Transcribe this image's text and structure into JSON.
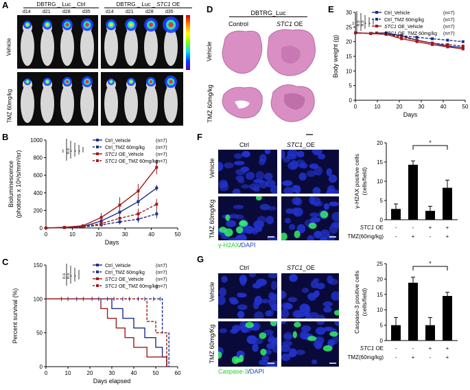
{
  "panelA": {
    "letter": "A",
    "group_ctrl": "DBTRG _ Luc _ Ctrl",
    "group_oe_prefix": "DBTRG _ Luc _ ",
    "group_oe_gene": "STC1",
    "group_oe_suffix": " OE",
    "days": [
      "d14",
      "d21",
      "d28",
      "d35",
      "d14",
      "d21",
      "d28",
      "d35"
    ],
    "row1": "Vehicle",
    "row2": "TMZ 60mg/kg",
    "colors": {
      "bg": "#111111",
      "mouse": "#d8d8d8"
    }
  },
  "panelD": {
    "letter": "D",
    "header": "DBTRG_Luc",
    "col1": "Control",
    "col2_gene": "STC1",
    "col2_suffix": " OE",
    "row1": "Vehicle",
    "row2": "TMZ 60mg/kg",
    "tissue_color": "#d98fc4"
  },
  "panelE": {
    "letter": "E",
    "legend": [
      {
        "pre": "",
        "gene": "",
        "post": "Ctrl_Vehicle",
        "n": "(n=7)"
      },
      {
        "pre": "",
        "gene": "",
        "post": "Ctrl_TMZ 60mg/kg",
        "n": "(n=7)"
      },
      {
        "pre": "",
        "gene": "STC1",
        "post": " OE_Vehicle",
        "n": "(n=7)"
      },
      {
        "pre": "",
        "gene": "STC1",
        "post": " OE_TMZ 60mg/kg",
        "n": "(n=7)"
      }
    ],
    "sig": [
      "**",
      "n.s",
      "n.s",
      "*",
      "*"
    ]
  },
  "panelB": {
    "letter": "B",
    "legend": [
      {
        "gene": "",
        "post": "Ctrl_Vehicle",
        "n": "(n=7)"
      },
      {
        "gene": "",
        "post": "Ctrl_TMZ 60mg/kg",
        "n": "(n=7)"
      },
      {
        "gene": "STC1",
        "post": " OE_Vehicle",
        "n": "(n=7)"
      },
      {
        "gene": "STC1",
        "post": " OE_TMZ 60mg/kg",
        "n": "(n=7)"
      }
    ],
    "sig": [
      "**",
      "n.s",
      "*",
      "*",
      "*"
    ]
  },
  "panelC": {
    "letter": "C",
    "legend": [
      {
        "gene": "",
        "post": "Ctrl_Vehicle",
        "n": "(n=7)"
      },
      {
        "gene": "",
        "post": "Ctrl_TMZ 60mg/kg",
        "n": "(n=7)"
      },
      {
        "gene": "STC1",
        "post": " OE_Vehicle",
        "n": "(n=7)"
      },
      {
        "gene": "STC1",
        "post": " OE_TMZ 60mg/kg",
        "n": "(n=7)"
      }
    ],
    "sig": [
      "n.s",
      "n.s",
      "*",
      "*"
    ]
  },
  "panelF": {
    "letter": "F",
    "col1": "Ctrl",
    "col2_gene": "STC1",
    "col2_suffix": "_OE",
    "row1": "Vehicle",
    "row2": "TMZ 60mg/Kg",
    "stain_green": "γ-H2AX",
    "stain_sep": "/",
    "stain_blue": "DAPI"
  },
  "panelG": {
    "letter": "G",
    "col1": "Ctrl",
    "col2_gene": "STC1",
    "col2_suffix": "_OE",
    "row1": "Vehicle",
    "row2": "TMZ 60mg/Kg",
    "stain_green": "Caspase-3",
    "stain_sep": "/",
    "stain_blue": "DAPI"
  },
  "bar_rows": {
    "stc1_label": "STC1",
    "stc1_suffix": " OE",
    "tmz_label": "TMZ(60mg/kg)",
    "stc1_signs": [
      "-",
      "-",
      "+",
      "+"
    ],
    "tmz_signs": [
      "-",
      "+",
      "-",
      "+"
    ]
  },
  "chart_data": [
    {
      "id": "E",
      "type": "line",
      "xlabel": "Days",
      "ylabel": "Body weight (g)",
      "xlim": [
        0,
        50
      ],
      "ylim": [
        0,
        30
      ],
      "xticks": [
        0,
        10,
        20,
        30,
        40,
        50
      ],
      "yticks": [
        0,
        5,
        10,
        15,
        20,
        25,
        30
      ],
      "series": [
        {
          "name": "Ctrl_Vehicle",
          "color": "#1a2a8c",
          "dash": false,
          "x": [
            0,
            7,
            14,
            21,
            28,
            35,
            42,
            49
          ],
          "y": [
            23,
            22.8,
            23,
            22,
            20.5,
            19.5,
            18.5,
            18
          ]
        },
        {
          "name": "Ctrl_TMZ 60mg/kg",
          "color": "#1a2a8c",
          "dash": true,
          "x": [
            0,
            7,
            14,
            21,
            28,
            35,
            42,
            49
          ],
          "y": [
            23,
            22.8,
            22.5,
            22,
            21.5,
            21,
            20.5,
            20
          ]
        },
        {
          "name": "STC1 OE_Vehicle",
          "color": "#a01818",
          "dash": false,
          "x": [
            0,
            7,
            14,
            21,
            28,
            35,
            42,
            49
          ],
          "y": [
            23,
            22.8,
            22.5,
            21,
            20,
            19,
            18.2,
            17.5
          ]
        },
        {
          "name": "STC1 OE_TMZ 60mg/kg",
          "color": "#a01818",
          "dash": true,
          "x": [
            0,
            7,
            14,
            21,
            28,
            35,
            42,
            49
          ],
          "y": [
            23,
            22.8,
            22.5,
            21.5,
            20.5,
            19.5,
            19,
            18.5
          ]
        }
      ]
    },
    {
      "id": "B",
      "type": "line",
      "xlabel": "Days",
      "ylabel": "Bioluminescence",
      "ylabel2": "(photons x 10⁸/s/mm²/sr)",
      "xlim": [
        0,
        50
      ],
      "ylim": [
        0,
        1000
      ],
      "xticks": [
        0,
        10,
        20,
        30,
        40,
        50
      ],
      "yticks": [
        0,
        200,
        400,
        600,
        800,
        1000
      ],
      "series": [
        {
          "name": "Ctrl_Vehicle",
          "color": "#1a2a8c",
          "dash": false,
          "x": [
            0,
            7,
            14,
            21,
            28,
            35,
            42
          ],
          "y": [
            0,
            5,
            15,
            80,
            180,
            300,
            455
          ],
          "err": [
            0,
            3,
            8,
            30,
            40,
            50,
            35
          ]
        },
        {
          "name": "Ctrl_TMZ 60mg/kg",
          "color": "#1a2a8c",
          "dash": true,
          "x": [
            0,
            7,
            14,
            21,
            28,
            35,
            42
          ],
          "y": [
            0,
            3,
            10,
            35,
            70,
            100,
            160
          ],
          "err": [
            0,
            2,
            5,
            20,
            30,
            40,
            50
          ]
        },
        {
          "name": "STC1 OE_Vehicle",
          "color": "#a01818",
          "dash": false,
          "x": [
            0,
            7,
            14,
            21,
            28,
            35,
            42
          ],
          "y": [
            0,
            8,
            25,
            120,
            260,
            420,
            690
          ],
          "err": [
            0,
            4,
            10,
            50,
            90,
            80,
            80
          ]
        },
        {
          "name": "STC1 OE_TMZ 60mg/kg",
          "color": "#a01818",
          "dash": true,
          "x": [
            0,
            7,
            14,
            21,
            28,
            35,
            42
          ],
          "y": [
            0,
            4,
            15,
            50,
            110,
            160,
            270
          ],
          "err": [
            0,
            2,
            6,
            30,
            50,
            60,
            60
          ]
        }
      ]
    },
    {
      "id": "C",
      "type": "line",
      "xlabel": "Days elapsed",
      "ylabel": "Percent survival (%)",
      "xlim": [
        0,
        60
      ],
      "ylim": [
        0,
        150
      ],
      "xticks": [
        0,
        10,
        20,
        30,
        40,
        50,
        60
      ],
      "yticks": [
        0,
        50,
        100,
        150
      ],
      "series": [
        {
          "name": "Ctrl_Vehicle",
          "color": "#1a2a8c",
          "dash": false,
          "steps": [
            [
              0,
              100
            ],
            [
              30,
              100
            ],
            [
              30,
              85.7
            ],
            [
              35,
              85.7
            ],
            [
              35,
              71.4
            ],
            [
              40,
              71.4
            ],
            [
              40,
              57.1
            ],
            [
              45,
              57.1
            ],
            [
              45,
              42.9
            ],
            [
              50,
              42.9
            ],
            [
              50,
              28.6
            ],
            [
              53,
              28.6
            ],
            [
              53,
              14.3
            ],
            [
              55,
              14.3
            ],
            [
              55,
              0
            ]
          ]
        },
        {
          "name": "Ctrl_TMZ 60mg/kg",
          "color": "#1a2a8c",
          "dash": true,
          "steps": [
            [
              0,
              100
            ],
            [
              53,
              100
            ],
            [
              53,
              50
            ],
            [
              56,
              50
            ],
            [
              56,
              0
            ]
          ]
        },
        {
          "name": "STC1 OE_Vehicle",
          "color": "#a01818",
          "dash": false,
          "steps": [
            [
              0,
              100
            ],
            [
              25,
              100
            ],
            [
              25,
              85.7
            ],
            [
              28,
              85.7
            ],
            [
              28,
              71.4
            ],
            [
              32,
              71.4
            ],
            [
              32,
              57.1
            ],
            [
              36,
              57.1
            ],
            [
              36,
              42.9
            ],
            [
              40,
              42.9
            ],
            [
              40,
              28.6
            ],
            [
              46,
              28.6
            ],
            [
              46,
              14.3
            ],
            [
              55,
              14.3
            ],
            [
              55,
              0
            ]
          ]
        },
        {
          "name": "STC1 OE_TMZ 60mg/kg",
          "color": "#a01818",
          "dash": true,
          "steps": [
            [
              0,
              100
            ],
            [
              46,
              100
            ],
            [
              46,
              66.7
            ],
            [
              50,
              66.7
            ],
            [
              50,
              50
            ],
            [
              55,
              50
            ],
            [
              55,
              0
            ]
          ]
        }
      ],
      "ticks_marks": [
        7,
        10,
        14,
        17,
        21,
        24,
        28,
        31,
        35,
        38,
        42,
        45,
        49,
        52
      ]
    },
    {
      "id": "F-bar",
      "type": "bar",
      "ylabel": "γ-H2AX positive cells",
      "ylabel2": "(cells/field)",
      "ylim": [
        0,
        20
      ],
      "yticks": [
        0,
        5,
        10,
        15,
        20
      ],
      "values": [
        2.8,
        14.3,
        2.3,
        8.3
      ],
      "err": [
        1.3,
        1.0,
        1.2,
        2.0
      ],
      "sig": "*"
    },
    {
      "id": "G-bar",
      "type": "bar",
      "ylabel": "Caspase-3 positive cells",
      "ylabel2": "(cells/field)",
      "ylim": [
        0,
        25
      ],
      "yticks": [
        0,
        5,
        10,
        15,
        20,
        25
      ],
      "values": [
        5.0,
        18.8,
        5.0,
        14.5
      ],
      "err": [
        2.5,
        1.8,
        2.5,
        1.2
      ],
      "sig": "*"
    }
  ]
}
